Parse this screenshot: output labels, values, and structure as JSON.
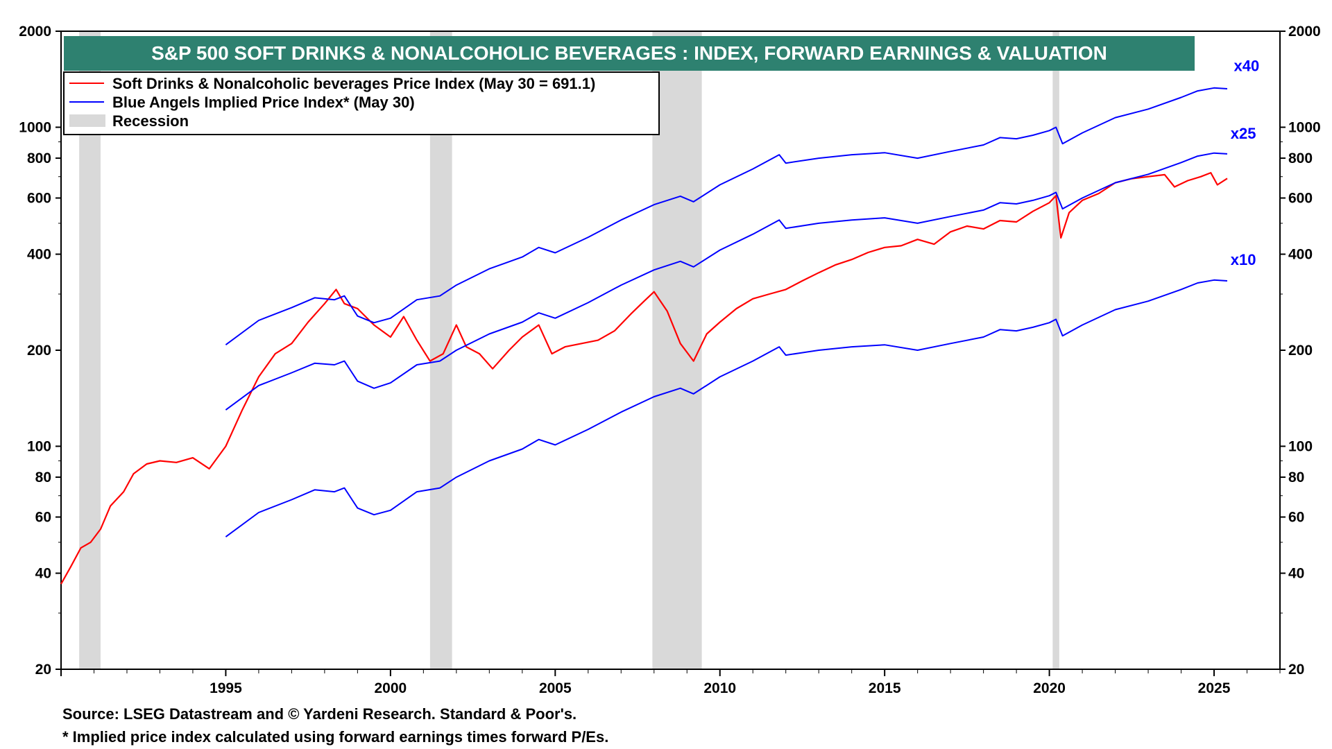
{
  "chart_data": {
    "type": "line",
    "title": "S&P 500 SOFT DRINKS & NONALCOHOLIC BEVERAGES : INDEX, FORWARD EARNINGS & VALUATION",
    "y_scale": "log",
    "ylim": [
      20,
      2000
    ],
    "xlim": [
      1990.0,
      2027.0
    ],
    "y_ticks": [
      20,
      40,
      60,
      80,
      100,
      200,
      400,
      600,
      800,
      1000,
      2000
    ],
    "y_tick_labels": [
      "20",
      "40",
      "60",
      "80",
      "100",
      "200",
      "400",
      "600",
      "800",
      "1000",
      "2000"
    ],
    "x_ticks": [
      1995,
      2000,
      2005,
      2010,
      2015,
      2020,
      2025
    ],
    "x_tick_labels": [
      "1995",
      "2000",
      "2005",
      "2010",
      "2015",
      "2020",
      "2025"
    ],
    "grid": false,
    "legend_position": "top-left",
    "legend": [
      {
        "label": "Soft Drinks & Nonalcoholic beverages Price Index (May 30 = 691.1)",
        "color": "#ff0000",
        "kind": "line"
      },
      {
        "label": "Blue Angels Implied Price Index* (May 30)",
        "color": "#0000ff",
        "kind": "line"
      },
      {
        "label": "Recession",
        "color": "#d9d9d9",
        "kind": "box"
      }
    ],
    "recessions": [
      {
        "start": 1990.55,
        "end": 1991.2
      },
      {
        "start": 2001.2,
        "end": 2001.87
      },
      {
        "start": 2007.95,
        "end": 2009.45
      },
      {
        "start": 2020.1,
        "end": 2020.3
      }
    ],
    "series": [
      {
        "name": "Soft Drinks & Nonalcoholic beverages Price Index (May 30 = 691.1)",
        "color": "#ff0000",
        "x": [
          1990.0,
          1990.3,
          1990.6,
          1990.9,
          1991.2,
          1991.5,
          1991.9,
          1992.2,
          1992.6,
          1993.0,
          1993.5,
          1994.0,
          1994.5,
          1995.0,
          1995.5,
          1996.0,
          1996.5,
          1997.0,
          1997.5,
          1998.0,
          1998.35,
          1998.6,
          1999.0,
          1999.5,
          2000.0,
          2000.4,
          2000.8,
          2001.2,
          2001.6,
          2002.0,
          2002.3,
          2002.7,
          2003.1,
          2003.6,
          2004.0,
          2004.5,
          2004.9,
          2005.3,
          2005.8,
          2006.3,
          2006.8,
          2007.3,
          2007.7,
          2008.0,
          2008.4,
          2008.8,
          2009.2,
          2009.6,
          2010.0,
          2010.5,
          2011.0,
          2011.5,
          2012.0,
          2012.5,
          2013.0,
          2013.5,
          2014.0,
          2014.5,
          2015.0,
          2015.5,
          2016.0,
          2016.5,
          2017.0,
          2017.5,
          2018.0,
          2018.5,
          2019.0,
          2019.5,
          2020.0,
          2020.2,
          2020.35,
          2020.6,
          2021.0,
          2021.5,
          2022.0,
          2022.5,
          2023.0,
          2023.5,
          2023.8,
          2024.2,
          2024.6,
          2024.9,
          2025.1,
          2025.4
        ],
        "values": [
          37,
          42,
          48,
          50,
          55,
          65,
          72,
          82,
          88,
          90,
          89,
          92,
          85,
          100,
          130,
          165,
          195,
          210,
          245,
          280,
          310,
          280,
          270,
          240,
          220,
          255,
          215,
          185,
          195,
          240,
          205,
          195,
          175,
          200,
          220,
          240,
          195,
          205,
          210,
          215,
          230,
          260,
          285,
          305,
          265,
          210,
          185,
          225,
          245,
          270,
          290,
          300,
          310,
          330,
          350,
          370,
          385,
          405,
          420,
          425,
          445,
          430,
          470,
          490,
          480,
          510,
          505,
          545,
          580,
          610,
          450,
          540,
          590,
          620,
          670,
          690,
          700,
          710,
          650,
          680,
          700,
          720,
          660,
          691
        ]
      },
      {
        "name": "",
        "color": "#0000ff",
        "x": [
          1995.0,
          1996.0,
          1997.0,
          1997.7,
          1998.3,
          1998.6,
          1999.0,
          1999.5,
          2000.0,
          2000.8,
          2001.5,
          2002.0,
          2003.0,
          2004.0,
          2004.5,
          2005.0,
          2006.0,
          2007.0,
          2008.0,
          2008.8,
          2009.2,
          2010.0,
          2011.0,
          2011.8,
          2012.0,
          2013.0,
          2014.0,
          2015.0,
          2016.0,
          2017.0,
          2018.0,
          2018.5,
          2019.0,
          2019.5,
          2020.0,
          2020.2,
          2020.4,
          2021.0,
          2022.0,
          2023.0,
          2024.0,
          2024.5,
          2025.0,
          2025.4
        ],
        "values": [
          52,
          62,
          68,
          73,
          72,
          74,
          64,
          61,
          63,
          72,
          74,
          80,
          90,
          98,
          105,
          101,
          113,
          128,
          143,
          152,
          146,
          165,
          185,
          205,
          193,
          200,
          205,
          208,
          200,
          210,
          220,
          232,
          230,
          236,
          244,
          250,
          222,
          240,
          268,
          285,
          310,
          325,
          332,
          330
        ]
      },
      {
        "name": "",
        "color": "#0000ff",
        "x": [
          1995.0,
          1996.0,
          1997.0,
          1997.7,
          1998.3,
          1998.6,
          1999.0,
          1999.5,
          2000.0,
          2000.8,
          2001.5,
          2002.0,
          2003.0,
          2004.0,
          2004.5,
          2005.0,
          2006.0,
          2007.0,
          2008.0,
          2008.8,
          2009.2,
          2010.0,
          2011.0,
          2011.8,
          2012.0,
          2013.0,
          2014.0,
          2015.0,
          2016.0,
          2017.0,
          2018.0,
          2018.5,
          2019.0,
          2019.5,
          2020.0,
          2020.2,
          2020.4,
          2021.0,
          2022.0,
          2023.0,
          2024.0,
          2024.5,
          2025.0,
          2025.4
        ],
        "values": [
          130,
          155,
          170,
          182,
          180,
          185,
          160,
          152,
          158,
          180,
          185,
          200,
          225,
          245,
          262,
          252,
          282,
          320,
          357,
          380,
          365,
          412,
          462,
          512,
          482,
          500,
          512,
          520,
          500,
          525,
          550,
          580,
          575,
          590,
          610,
          625,
          555,
          600,
          670,
          712,
          775,
          812,
          830,
          825
        ]
      },
      {
        "name": "",
        "color": "#0000ff",
        "x": [
          1995.0,
          1996.0,
          1997.0,
          1997.7,
          1998.3,
          1998.6,
          1999.0,
          1999.5,
          2000.0,
          2000.8,
          2001.5,
          2002.0,
          2003.0,
          2004.0,
          2004.5,
          2005.0,
          2006.0,
          2007.0,
          2008.0,
          2008.8,
          2009.2,
          2010.0,
          2011.0,
          2011.8,
          2012.0,
          2013.0,
          2014.0,
          2015.0,
          2016.0,
          2017.0,
          2018.0,
          2018.5,
          2019.0,
          2019.5,
          2020.0,
          2020.2,
          2020.4,
          2021.0,
          2022.0,
          2023.0,
          2024.0,
          2024.5,
          2025.0,
          2025.4
        ],
        "values": [
          208,
          248,
          272,
          292,
          288,
          296,
          256,
          244,
          252,
          288,
          296,
          320,
          360,
          392,
          420,
          404,
          452,
          512,
          572,
          608,
          584,
          660,
          740,
          820,
          772,
          800,
          820,
          832,
          800,
          840,
          880,
          928,
          920,
          944,
          976,
          1000,
          888,
          960,
          1072,
          1140,
          1240,
          1300,
          1328,
          1320
        ]
      }
    ],
    "series_labels": [
      {
        "text": "x40",
        "x": 2025.6,
        "y": 1500,
        "color": "#0000ff"
      },
      {
        "text": "x25",
        "x": 2025.5,
        "y": 920,
        "color": "#0000ff"
      },
      {
        "text": "x10",
        "x": 2025.5,
        "y": 370,
        "color": "#0000ff"
      }
    ]
  },
  "footnotes": {
    "source": "Source: LSEG Datastream and © Yardeni Research. Standard & Poor's.",
    "note": "* Implied price index calculated using forward earnings times forward P/Es."
  },
  "colors": {
    "title_bg": "#2e8170",
    "title_text": "#ffffff",
    "price_line": "#ff0000",
    "implied_line": "#0000ff",
    "recession": "#d9d9d9"
  }
}
